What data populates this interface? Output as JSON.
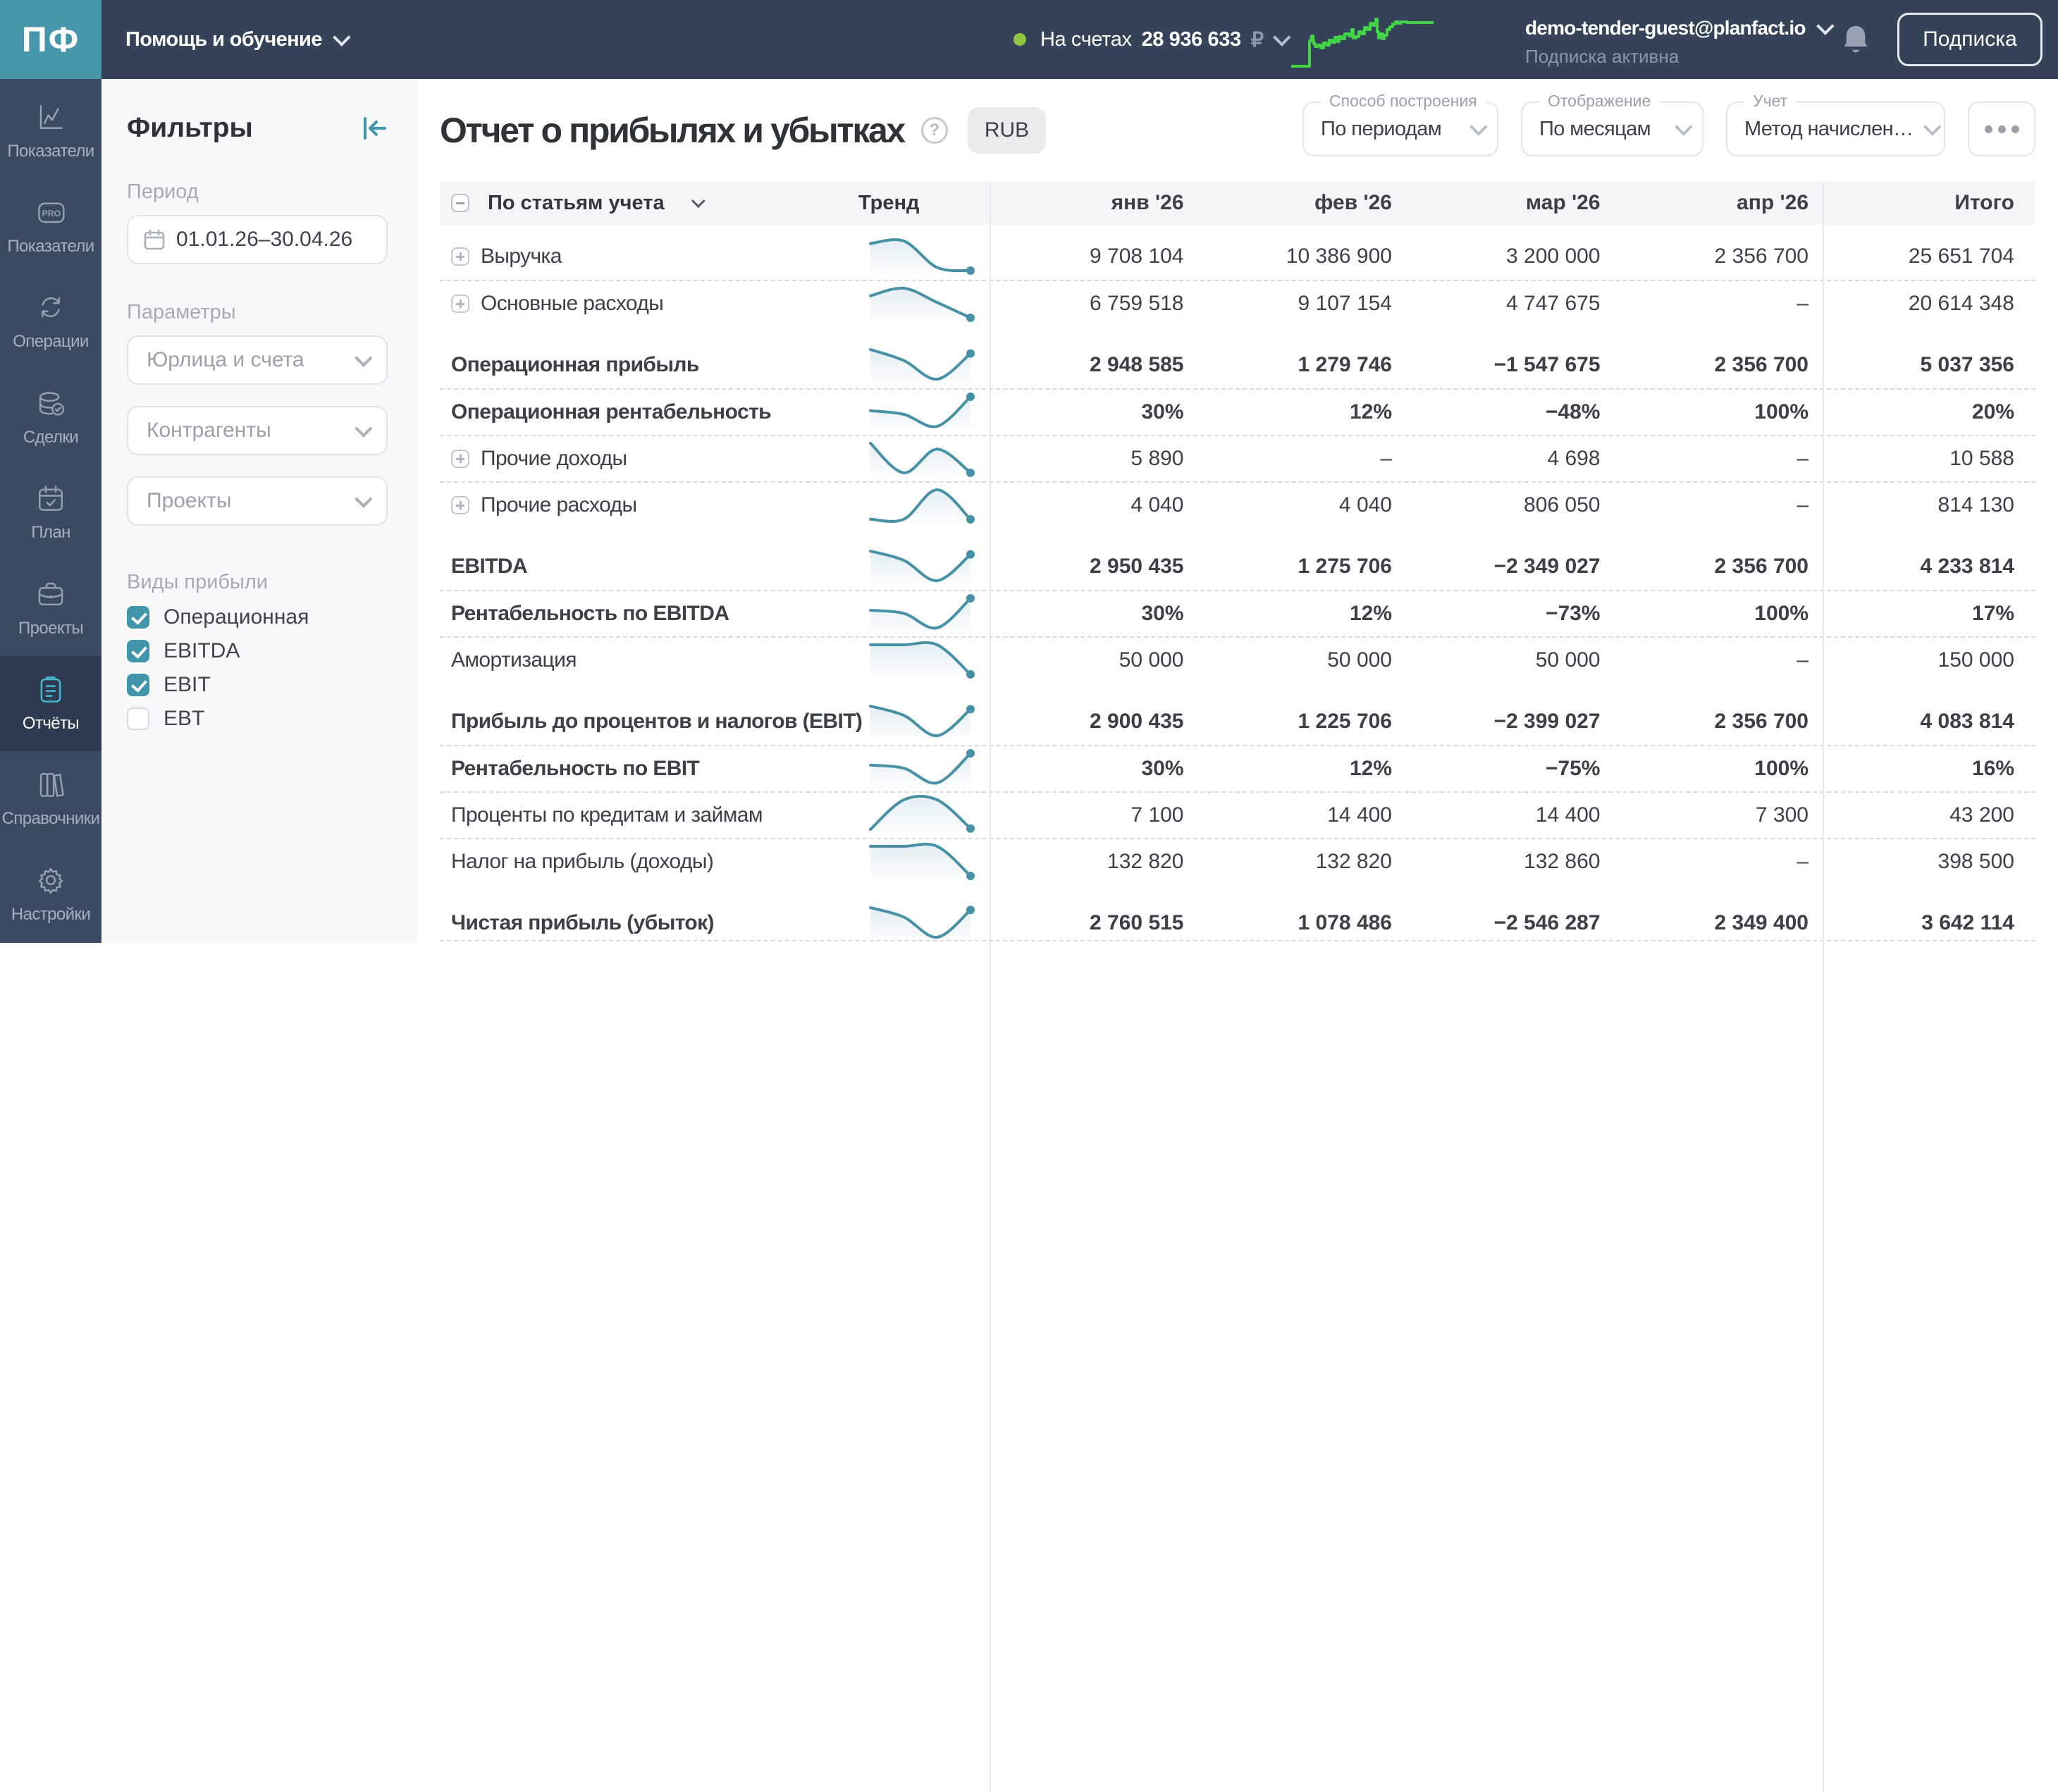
{
  "accent": {
    "teal": "#4697ac",
    "spark": "#4791a7",
    "green": "#42d348",
    "navy_top": "#344357",
    "navy_side": "#394a61"
  },
  "topbar": {
    "logo": "ПФ",
    "help_label": "Помощь и обучение",
    "balance_prefix": "На счетах",
    "balance_value": "28 936 633",
    "balance_currency": "₽",
    "user_email": "demo-tender-guest@planfact.io",
    "subscription_status": "Подписка активна",
    "subscribe_button": "Подписка",
    "balance_trend": [
      [
        0,
        47
      ],
      [
        13,
        47
      ],
      [
        13,
        29
      ],
      [
        14,
        29
      ],
      [
        14.5,
        25.5
      ],
      [
        15.5,
        25.5
      ],
      [
        16,
        31
      ],
      [
        17,
        31
      ],
      [
        17,
        33
      ],
      [
        19,
        33
      ],
      [
        19,
        32
      ],
      [
        21,
        32
      ],
      [
        21,
        34
      ],
      [
        23,
        34
      ],
      [
        23,
        30.5
      ],
      [
        25,
        30.5
      ],
      [
        25,
        32
      ],
      [
        27,
        32
      ],
      [
        27,
        28.5
      ],
      [
        29,
        28.5
      ],
      [
        29,
        30
      ],
      [
        31,
        30
      ],
      [
        31,
        26.5
      ],
      [
        33,
        26.5
      ],
      [
        33,
        29.5
      ],
      [
        34,
        29.5
      ],
      [
        34,
        26
      ],
      [
        36,
        26
      ],
      [
        36,
        27.5
      ],
      [
        38,
        27.5
      ],
      [
        38,
        24
      ],
      [
        41,
        24
      ],
      [
        41,
        25.5
      ],
      [
        43,
        25.5
      ],
      [
        43,
        21
      ],
      [
        44,
        21
      ],
      [
        44,
        27
      ],
      [
        46,
        27
      ],
      [
        46,
        26
      ],
      [
        48,
        26
      ],
      [
        48,
        22.5
      ],
      [
        50,
        22.5
      ],
      [
        50,
        24
      ],
      [
        52,
        24
      ],
      [
        52,
        19.5
      ],
      [
        54,
        19.5
      ],
      [
        54,
        21
      ],
      [
        56,
        21
      ],
      [
        56,
        16.5
      ],
      [
        58,
        16.5
      ],
      [
        58,
        18
      ],
      [
        60,
        18
      ],
      [
        60,
        13.5
      ],
      [
        61,
        13.5
      ],
      [
        61,
        22.5
      ],
      [
        62,
        22.5
      ],
      [
        62,
        27
      ],
      [
        63,
        27
      ],
      [
        63,
        24
      ],
      [
        65,
        24
      ],
      [
        65,
        27.5
      ],
      [
        66,
        27.5
      ],
      [
        66,
        25
      ],
      [
        68,
        25
      ],
      [
        68,
        21
      ],
      [
        70,
        21
      ],
      [
        70,
        19
      ],
      [
        72,
        19
      ],
      [
        72,
        17
      ],
      [
        74,
        17
      ],
      [
        74,
        15.5
      ],
      [
        76,
        15.5
      ],
      [
        76,
        16.5
      ],
      [
        78,
        16.5
      ],
      [
        78,
        15.5
      ],
      [
        82,
        15.5
      ],
      [
        82,
        16
      ],
      [
        101,
        16
      ]
    ]
  },
  "sidebar": {
    "items": [
      {
        "label": "Показатели",
        "icon": "chart-line",
        "active": false
      },
      {
        "label": "Показатели",
        "icon": "pro-badge",
        "active": false
      },
      {
        "label": "Операции",
        "icon": "sync-arrows",
        "active": false
      },
      {
        "label": "Сделки",
        "icon": "coins-check",
        "active": false
      },
      {
        "label": "План",
        "icon": "calendar-check",
        "active": false
      },
      {
        "label": "Проекты",
        "icon": "briefcase",
        "active": false
      },
      {
        "label": "Отчёты",
        "icon": "clipboard",
        "active": true
      },
      {
        "label": "Справочники",
        "icon": "books",
        "active": false
      },
      {
        "label": "Настройки",
        "icon": "gear",
        "active": false
      }
    ]
  },
  "filters": {
    "title": "Фильтры",
    "period_label": "Период",
    "period_value": "01.01.26–30.04.26",
    "params_label": "Параметры",
    "selects": [
      "Юрлица и счета",
      "Контрагенты",
      "Проекты"
    ],
    "profit_kinds_label": "Виды прибыли",
    "profit_kinds": [
      {
        "label": "Операционная",
        "checked": true
      },
      {
        "label": "EBITDA",
        "checked": true
      },
      {
        "label": "EBIT",
        "checked": true
      },
      {
        "label": "EBT",
        "checked": false
      }
    ]
  },
  "header": {
    "title": "Отчет о прибылях и убытках",
    "currency_badge": "RUB",
    "controls": [
      {
        "label": "Способ построения",
        "value": "По периодам"
      },
      {
        "label": "Отображение",
        "value": "По месяцам"
      },
      {
        "label": "Учет",
        "value": "Метод начислен…"
      }
    ]
  },
  "table": {
    "name_header": "По статьям учета",
    "trend_header": "Тренд",
    "months": [
      "янв '26",
      "фев '26",
      "мар '26",
      "апр '26"
    ],
    "total_header": "Итого",
    "groups": [
      {
        "rows": [
          {
            "label": "Выручка",
            "expand": true,
            "bold": false,
            "values": [
              "9 708 104",
              "10 386 900",
              "3 200 000",
              "2 356 700"
            ],
            "total": "25 651 704",
            "trend": [
              9708104,
              10386900,
              3200000,
              2356700
            ]
          },
          {
            "label": "Основные расходы",
            "expand": true,
            "bold": false,
            "values": [
              "6 759 518",
              "9 107 154",
              "4 747 675",
              "–"
            ],
            "total": "20 614 348",
            "trend": [
              6759518,
              9107154,
              4747675,
              0
            ]
          }
        ]
      },
      {
        "rows": [
          {
            "label": "Операционная прибыль",
            "expand": false,
            "bold": true,
            "values": [
              "2 948 585",
              "1 279 746",
              "−1 547 675",
              "2 356 700"
            ],
            "total": "5 037 356",
            "trend": [
              2948585,
              1279746,
              -1547675,
              2356700
            ]
          },
          {
            "label": "Операционная рентабельность",
            "expand": false,
            "bold": true,
            "values": [
              "30%",
              "12%",
              "−48%",
              "100%"
            ],
            "total": "20%",
            "trend": [
              30,
              12,
              -48,
              100
            ]
          },
          {
            "label": "Прочие доходы",
            "expand": true,
            "bold": false,
            "values": [
              "5 890",
              "–",
              "4 698",
              "–"
            ],
            "total": "10 588",
            "trend": [
              5890,
              0,
              4698,
              0
            ]
          },
          {
            "label": "Прочие расходы",
            "expand": true,
            "bold": false,
            "values": [
              "4 040",
              "4 040",
              "806 050",
              "–"
            ],
            "total": "814 130",
            "trend": [
              4040,
              4040,
              806050,
              0
            ]
          }
        ]
      },
      {
        "rows": [
          {
            "label": "EBITDA",
            "expand": false,
            "bold": true,
            "values": [
              "2 950 435",
              "1 275 706",
              "−2 349 027",
              "2 356 700"
            ],
            "total": "4 233 814",
            "trend": [
              2950435,
              1275706,
              -2349027,
              2356700
            ]
          },
          {
            "label": "Рентабельность по EBITDA",
            "expand": false,
            "bold": true,
            "values": [
              "30%",
              "12%",
              "−73%",
              "100%"
            ],
            "total": "17%",
            "trend": [
              30,
              12,
              -73,
              100
            ]
          },
          {
            "label": "Амортизация",
            "expand": false,
            "bold": false,
            "values": [
              "50 000",
              "50 000",
              "50 000",
              "–"
            ],
            "total": "150 000",
            "trend": [
              50000,
              50000,
              50000,
              0
            ]
          }
        ]
      },
      {
        "rows": [
          {
            "label": "Прибыль до процентов и налогов (EBIT)",
            "expand": false,
            "bold": true,
            "values": [
              "2 900 435",
              "1 225 706",
              "−2 399 027",
              "2 356 700"
            ],
            "total": "4 083 814",
            "trend": [
              2900435,
              1225706,
              -2399027,
              2356700
            ]
          },
          {
            "label": "Рентабельность по EBIT",
            "expand": false,
            "bold": true,
            "values": [
              "30%",
              "12%",
              "−75%",
              "100%"
            ],
            "total": "16%",
            "trend": [
              30,
              12,
              -75,
              100
            ]
          },
          {
            "label": "Проценты по кредитам и займам",
            "expand": false,
            "bold": false,
            "values": [
              "7 100",
              "14 400",
              "14 400",
              "7 300"
            ],
            "total": "43 200",
            "trend": [
              7100,
              14400,
              14400,
              7300
            ]
          },
          {
            "label": "Налог на прибыль (доходы)",
            "expand": false,
            "bold": false,
            "values": [
              "132 820",
              "132 820",
              "132 860",
              "–"
            ],
            "total": "398 500",
            "trend": [
              132820,
              132820,
              132860,
              0
            ]
          }
        ]
      },
      {
        "rows": [
          {
            "label": "Чистая прибыль (убыток)",
            "expand": false,
            "bold": true,
            "values": [
              "2 760 515",
              "1 078 486",
              "−2 546 287",
              "2 349 400"
            ],
            "total": "3 642 114",
            "trend": [
              2760515,
              1078486,
              -2546287,
              2349400
            ]
          }
        ]
      }
    ]
  }
}
